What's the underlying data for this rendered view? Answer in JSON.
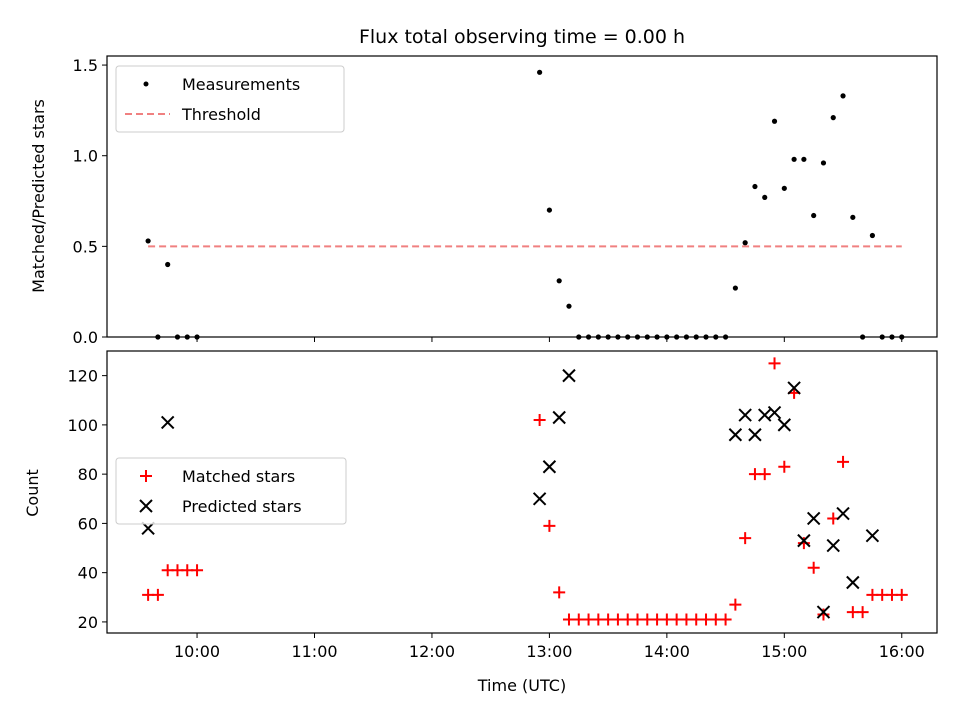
{
  "title": "Flux total observing time = 0.00 h",
  "chart_data": [
    {
      "type": "scatter",
      "ylabel": "Matched/Predicted stars",
      "xlim": [
        "09:14",
        "16:18"
      ],
      "ylim": [
        0,
        1.55
      ],
      "y_ticks": [
        "0.0",
        "0.5",
        "1.0",
        "1.5"
      ],
      "y_tick_values": [
        0,
        0.5,
        1.0,
        1.5
      ],
      "grid": false,
      "legend_position": "top-left",
      "series": [
        {
          "name": "Measurements",
          "marker": "dot",
          "color": "#000000",
          "points": [
            [
              "09:35",
              0.53
            ],
            [
              "09:40",
              0.0
            ],
            [
              "09:45",
              0.4
            ],
            [
              "09:50",
              0.0
            ],
            [
              "09:55",
              0.0
            ],
            [
              "10:00",
              0.0
            ],
            [
              "12:55",
              1.46
            ],
            [
              "13:00",
              0.7
            ],
            [
              "13:05",
              0.31
            ],
            [
              "13:10",
              0.17
            ],
            [
              "13:15",
              0.0
            ],
            [
              "13:20",
              0.0
            ],
            [
              "13:25",
              0.0
            ],
            [
              "13:30",
              0.0
            ],
            [
              "13:35",
              0.0
            ],
            [
              "13:40",
              0.0
            ],
            [
              "13:45",
              0.0
            ],
            [
              "13:50",
              0.0
            ],
            [
              "13:55",
              0.0
            ],
            [
              "14:00",
              0.0
            ],
            [
              "14:05",
              0.0
            ],
            [
              "14:10",
              0.0
            ],
            [
              "14:15",
              0.0
            ],
            [
              "14:20",
              0.0
            ],
            [
              "14:25",
              0.0
            ],
            [
              "14:30",
              0.0
            ],
            [
              "14:35",
              0.27
            ],
            [
              "14:40",
              0.52
            ],
            [
              "14:45",
              0.83
            ],
            [
              "14:50",
              0.77
            ],
            [
              "14:55",
              1.19
            ],
            [
              "15:00",
              0.82
            ],
            [
              "15:05",
              0.98
            ],
            [
              "15:10",
              0.98
            ],
            [
              "15:15",
              0.67
            ],
            [
              "15:20",
              0.96
            ],
            [
              "15:25",
              1.21
            ],
            [
              "15:30",
              1.33
            ],
            [
              "15:35",
              0.66
            ],
            [
              "15:40",
              0.0
            ],
            [
              "15:45",
              0.56
            ],
            [
              "15:50",
              0.0
            ],
            [
              "15:55",
              0.0
            ],
            [
              "16:00",
              0.0
            ]
          ]
        },
        {
          "name": "Threshold",
          "marker": "dashed-line",
          "color": "#f08080",
          "points": [
            [
              "09:35",
              0.5
            ],
            [
              "16:00",
              0.5
            ]
          ]
        }
      ]
    },
    {
      "type": "scatter",
      "xlabel": "Time (UTC)",
      "ylabel": "Count",
      "xlim": [
        "09:14",
        "16:18"
      ],
      "ylim": [
        15.5,
        130
      ],
      "y_ticks": [
        "20",
        "40",
        "60",
        "80",
        "100",
        "120"
      ],
      "y_tick_values": [
        20,
        40,
        60,
        80,
        100,
        120
      ],
      "x_ticks": [
        "10:00",
        "11:00",
        "12:00",
        "13:00",
        "14:00",
        "15:00",
        "16:00"
      ],
      "grid": false,
      "legend_position": "center-left",
      "series": [
        {
          "name": "Matched stars",
          "marker": "plus",
          "color": "#ff0000",
          "points": [
            [
              "09:35",
              31
            ],
            [
              "09:40",
              31
            ],
            [
              "09:45",
              41
            ],
            [
              "09:50",
              41
            ],
            [
              "09:55",
              41
            ],
            [
              "10:00",
              41
            ],
            [
              "12:55",
              102
            ],
            [
              "13:00",
              59
            ],
            [
              "13:05",
              32
            ],
            [
              "13:10",
              21
            ],
            [
              "13:15",
              21
            ],
            [
              "13:20",
              21
            ],
            [
              "13:25",
              21
            ],
            [
              "13:30",
              21
            ],
            [
              "13:35",
              21
            ],
            [
              "13:40",
              21
            ],
            [
              "13:45",
              21
            ],
            [
              "13:50",
              21
            ],
            [
              "13:55",
              21
            ],
            [
              "14:00",
              21
            ],
            [
              "14:05",
              21
            ],
            [
              "14:10",
              21
            ],
            [
              "14:15",
              21
            ],
            [
              "14:20",
              21
            ],
            [
              "14:25",
              21
            ],
            [
              "14:30",
              21
            ],
            [
              "14:35",
              27
            ],
            [
              "14:40",
              54
            ],
            [
              "14:45",
              80
            ],
            [
              "14:50",
              80
            ],
            [
              "14:55",
              125
            ],
            [
              "15:00",
              83
            ],
            [
              "15:05",
              113
            ],
            [
              "15:10",
              52
            ],
            [
              "15:15",
              42
            ],
            [
              "15:20",
              23
            ],
            [
              "15:25",
              62
            ],
            [
              "15:30",
              85
            ],
            [
              "15:35",
              24
            ],
            [
              "15:40",
              24
            ],
            [
              "15:45",
              31
            ],
            [
              "15:50",
              31
            ],
            [
              "15:55",
              31
            ],
            [
              "16:00",
              31
            ]
          ]
        },
        {
          "name": "Predicted stars",
          "marker": "x",
          "color": "#000000",
          "points": [
            [
              "09:35",
              58
            ],
            [
              "09:45",
              101
            ],
            [
              "12:55",
              70
            ],
            [
              "13:00",
              83
            ],
            [
              "13:05",
              103
            ],
            [
              "13:10",
              120
            ],
            [
              "14:35",
              96
            ],
            [
              "14:40",
              104
            ],
            [
              "14:45",
              96
            ],
            [
              "14:50",
              104
            ],
            [
              "14:55",
              105
            ],
            [
              "15:00",
              100
            ],
            [
              "15:05",
              115
            ],
            [
              "15:10",
              53
            ],
            [
              "15:15",
              62
            ],
            [
              "15:20",
              24
            ],
            [
              "15:25",
              51
            ],
            [
              "15:30",
              64
            ],
            [
              "15:35",
              36
            ],
            [
              "15:45",
              55
            ]
          ]
        }
      ]
    }
  ]
}
